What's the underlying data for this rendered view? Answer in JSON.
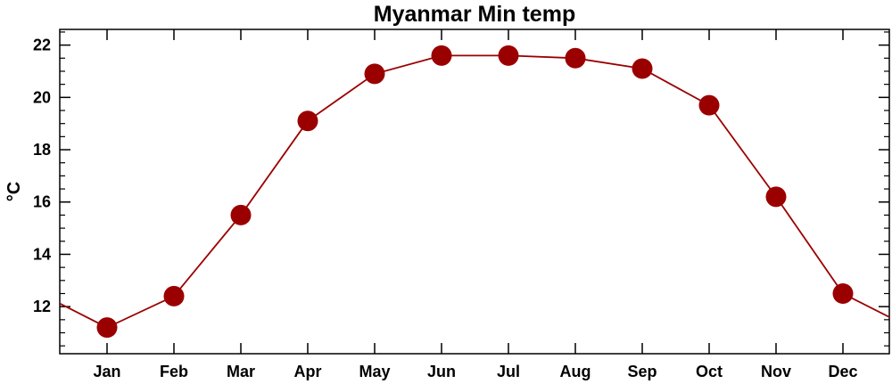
{
  "chart_data": {
    "type": "line",
    "title": "Myanmar Min temp",
    "xlabel": "",
    "ylabel": "°C",
    "categories": [
      "Jan",
      "Feb",
      "Mar",
      "Apr",
      "May",
      "Jun",
      "Jul",
      "Aug",
      "Sep",
      "Oct",
      "Nov",
      "Dec"
    ],
    "series": [
      {
        "values": [
          11.2,
          12.4,
          15.5,
          19.1,
          20.9,
          21.6,
          21.6,
          21.5,
          21.1,
          19.7,
          16.2,
          12.5
        ]
      }
    ],
    "ylim": [
      10.2,
      22.6
    ],
    "yticks": [
      12,
      14,
      16,
      18,
      20,
      22
    ],
    "grid": false,
    "legend": "none",
    "colors": {
      "series": "#9b0000",
      "marker": "#9b0000",
      "axis": "#000000",
      "background": "#ffffff"
    }
  }
}
